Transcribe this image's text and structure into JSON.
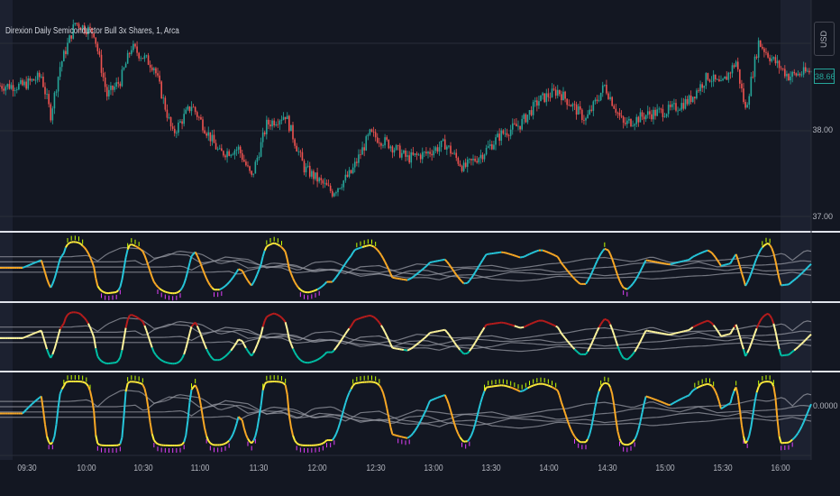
{
  "chart": {
    "title": "Direxion Daily Semiconductor Bull 3x Shares, 1, Arca",
    "currency": "USD",
    "last_price": "38.66",
    "price_labels": [
      "38.00",
      "37.00"
    ],
    "oscillator_label": "0.0000",
    "time_labels": [
      "09:30",
      "10:00",
      "10:30",
      "11:00",
      "11:30",
      "12:00",
      "12:30",
      "13:00",
      "13:30",
      "14:00",
      "14:30",
      "15:00",
      "15:30",
      "16:00"
    ]
  },
  "colors": {
    "background": "#131722",
    "up": "#26a69a",
    "down": "#ef5350",
    "session_highlight": "#2a2e39",
    "separator": "#ffffff",
    "osc_cyan": "#26c6da",
    "osc_yellow": "#ffeb3b",
    "osc_red": "#b71c1c",
    "osc_cream": "#fff59d",
    "osc_teal": "#00bfa5"
  },
  "chart_data": {
    "type": "candlestick",
    "symbol": "Direxion Daily Semiconductor Bull 3x Shares",
    "interval": "1",
    "exchange": "Arca",
    "ylim": [
      36.85,
      39.1
    ],
    "y_ticks": [
      38.0,
      37.0
    ],
    "last": 38.66,
    "x_ticks": [
      "09:30",
      "10:00",
      "10:30",
      "11:00",
      "11:30",
      "12:00",
      "12:30",
      "13:00",
      "13:30",
      "14:00",
      "14:30",
      "15:00",
      "15:30",
      "16:00"
    ],
    "price_path_minutes": [
      0,
      10,
      15,
      20,
      28,
      38,
      45,
      52,
      58,
      70,
      80,
      90,
      105,
      115,
      122,
      130,
      140,
      150,
      165,
      175,
      185,
      195,
      205,
      215,
      225,
      235,
      245,
      255,
      265,
      275,
      285,
      300,
      310,
      320,
      332,
      345,
      355,
      365,
      372,
      380,
      385,
      392,
      398,
      408,
      420
    ],
    "price_path_values": [
      38.3,
      38.4,
      38.0,
      38.5,
      38.95,
      38.85,
      38.2,
      38.35,
      38.7,
      38.5,
      37.8,
      38.1,
      37.6,
      37.65,
      37.35,
      37.9,
      38.0,
      37.45,
      37.2,
      37.4,
      37.8,
      37.7,
      37.55,
      37.6,
      37.7,
      37.45,
      37.6,
      37.8,
      37.9,
      38.15,
      38.25,
      37.95,
      38.3,
      37.9,
      38.0,
      38.05,
      38.15,
      38.4,
      38.3,
      38.55,
      38.05,
      38.75,
      38.6,
      38.4,
      38.45
    ]
  }
}
